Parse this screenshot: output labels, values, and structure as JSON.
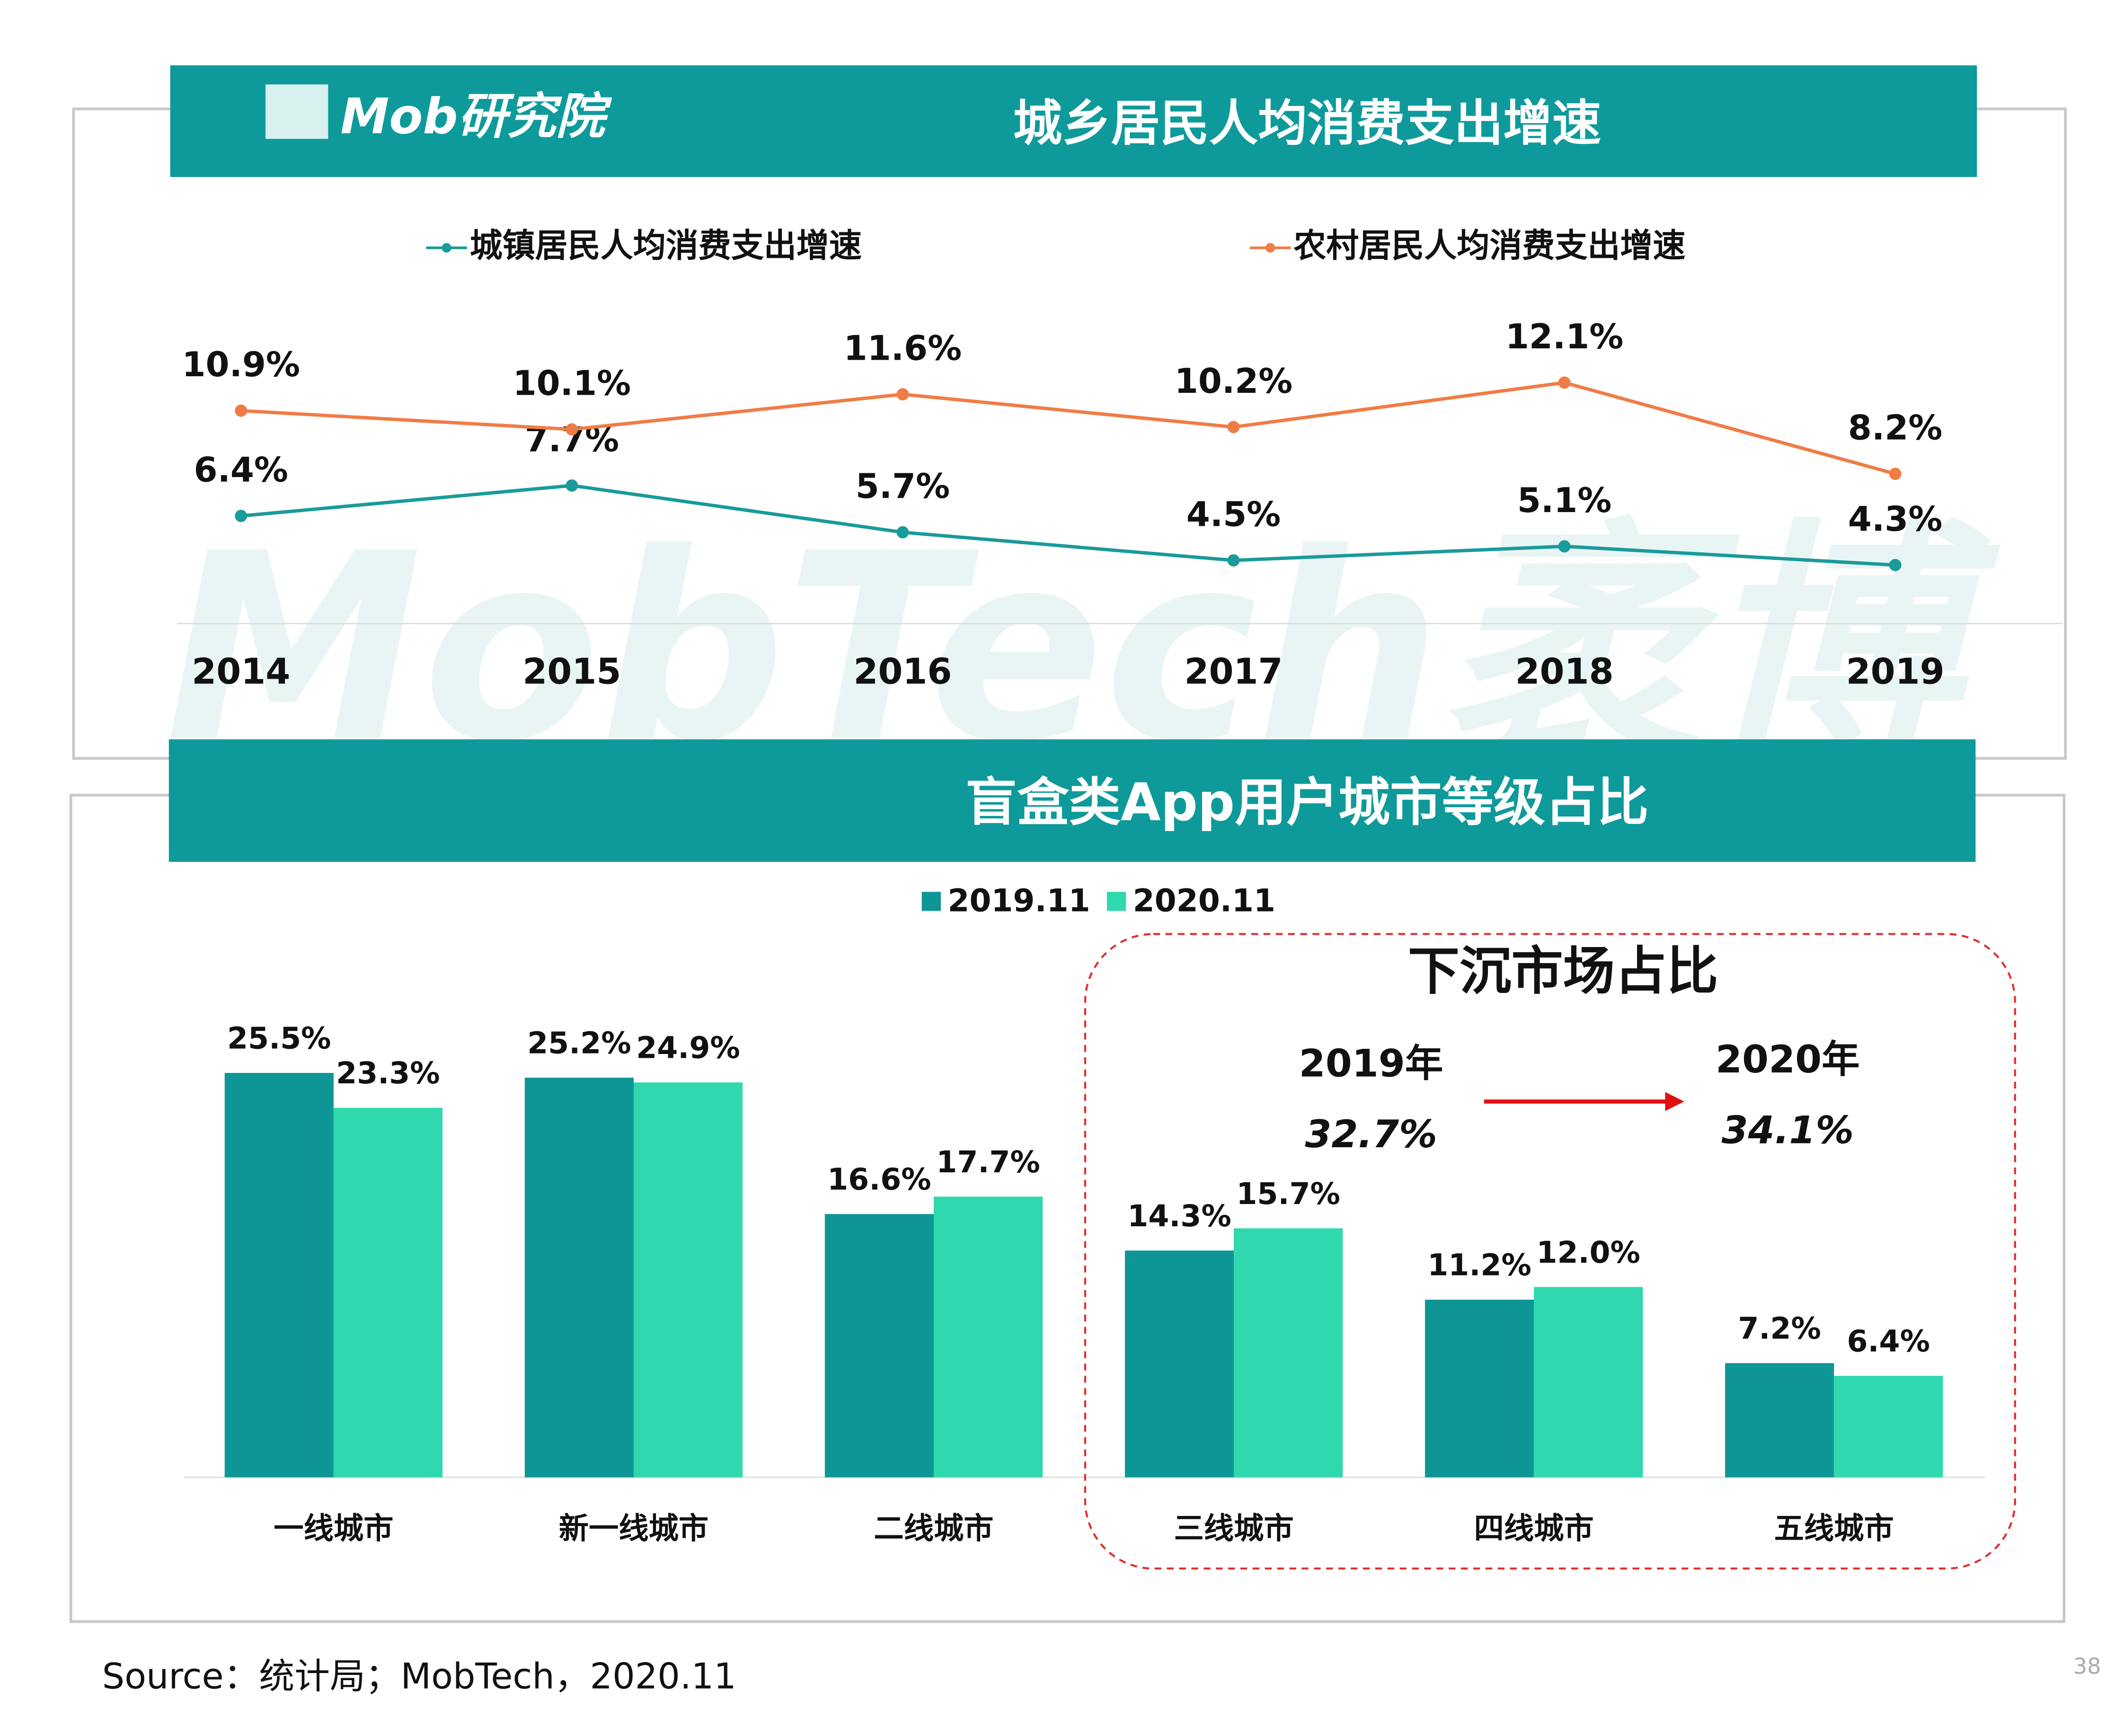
{
  "header": {
    "logo": "Mob研究院",
    "watermark": "MobTech袤博"
  },
  "chart_data": [
    {
      "type": "line",
      "title": "城乡居民人均消费支出增速",
      "categories": [
        "2014",
        "2015",
        "2016",
        "2017",
        "2018",
        "2019"
      ],
      "series": [
        {
          "name": "城镇居民人均消费支出增速",
          "color": "#1a9a9a",
          "values": [
            6.4,
            7.7,
            5.7,
            4.5,
            5.1,
            4.3
          ],
          "value_labels": [
            "6.4%",
            "7.7%",
            "5.7%",
            "4.5%",
            "5.1%",
            "4.3%"
          ]
        },
        {
          "name": "农村居民人均消费支出增速",
          "color": "#f07c45",
          "values": [
            10.9,
            10.1,
            11.6,
            10.2,
            12.1,
            8.2
          ],
          "value_labels": [
            "10.9%",
            "10.1%",
            "11.6%",
            "10.2%",
            "12.1%",
            "8.2%"
          ]
        }
      ]
    },
    {
      "type": "bar",
      "title": "盲盒类App用户城市等级占比",
      "categories": [
        "一线城市",
        "新一线城市",
        "二线城市",
        "三线城市",
        "四线城市",
        "五线城市"
      ],
      "series": [
        {
          "name": "2019.11",
          "color": "#0e9696",
          "values": [
            25.5,
            25.2,
            16.6,
            14.3,
            11.2,
            7.2
          ],
          "value_labels": [
            "25.5%",
            "25.2%",
            "16.6%",
            "14.3%",
            "11.2%",
            "7.2%"
          ]
        },
        {
          "name": "2020.11",
          "color": "#2fd8ad",
          "values": [
            23.3,
            24.9,
            17.7,
            15.7,
            12.0,
            6.4
          ],
          "value_labels": [
            "23.3%",
            "24.9%",
            "17.7%",
            "15.7%",
            "12.0%",
            "6.4%"
          ]
        }
      ]
    }
  ],
  "annotation": {
    "title": "下沉市场占比",
    "from_year": "2019年",
    "from_value": "32.7%",
    "to_year": "2020年",
    "to_value": "34.1%"
  },
  "footer": {
    "source": "Source：统计局；MobTech，2020.11",
    "page": "38"
  }
}
